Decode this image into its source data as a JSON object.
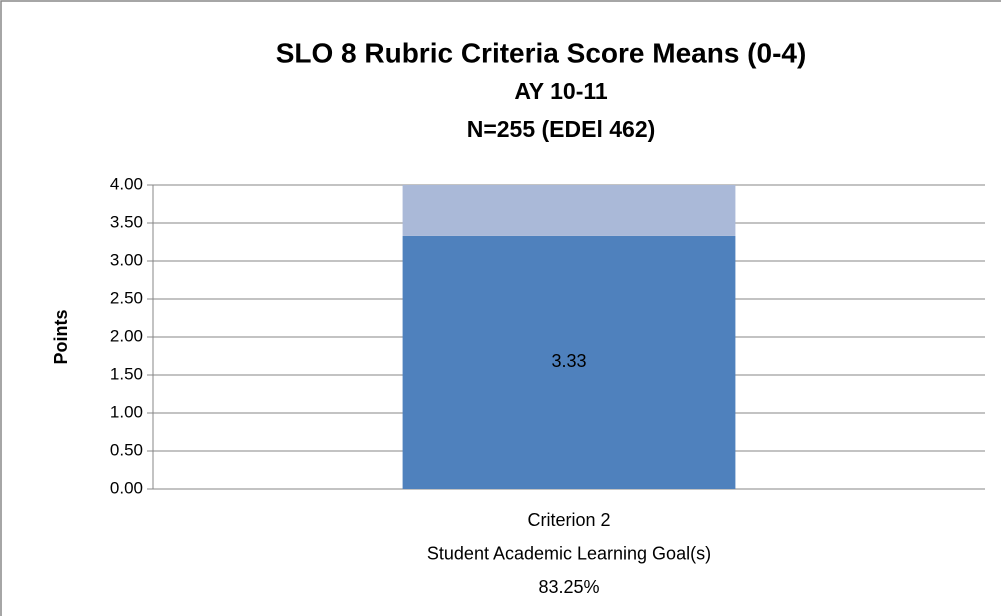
{
  "chart_data": {
    "type": "stacked_bar",
    "title": "SLO 8 Rubric Criteria Score Means (0-4)",
    "subtitle": [
      "AY 10-11",
      "N=255 (EDEl 462)"
    ],
    "y_label": "Points",
    "categories": [
      [
        "Criterion 2",
        "Student Academic Learning Goal(s)",
        "83.25%"
      ]
    ],
    "series": [
      {
        "color": "#4f81bd",
        "values": [
          3.33
        ]
      },
      {
        "color": "#aab9d8",
        "values": [
          0.67
        ]
      }
    ],
    "ylim": [
      0,
      4
    ],
    "yticks": [
      {
        "value": 0,
        "label": "0.00"
      },
      {
        "value": 0.5,
        "label": "0.50"
      },
      {
        "value": 1,
        "label": "1.00"
      },
      {
        "value": 1.5,
        "label": "1.50"
      },
      {
        "value": 2,
        "label": "2.00"
      },
      {
        "value": 2.5,
        "label": "2.50"
      },
      {
        "value": 3,
        "label": "3.00"
      },
      {
        "value": 3.5,
        "label": "3.50"
      },
      {
        "value": 4,
        "label": "4.00"
      }
    ],
    "grid": true
  }
}
